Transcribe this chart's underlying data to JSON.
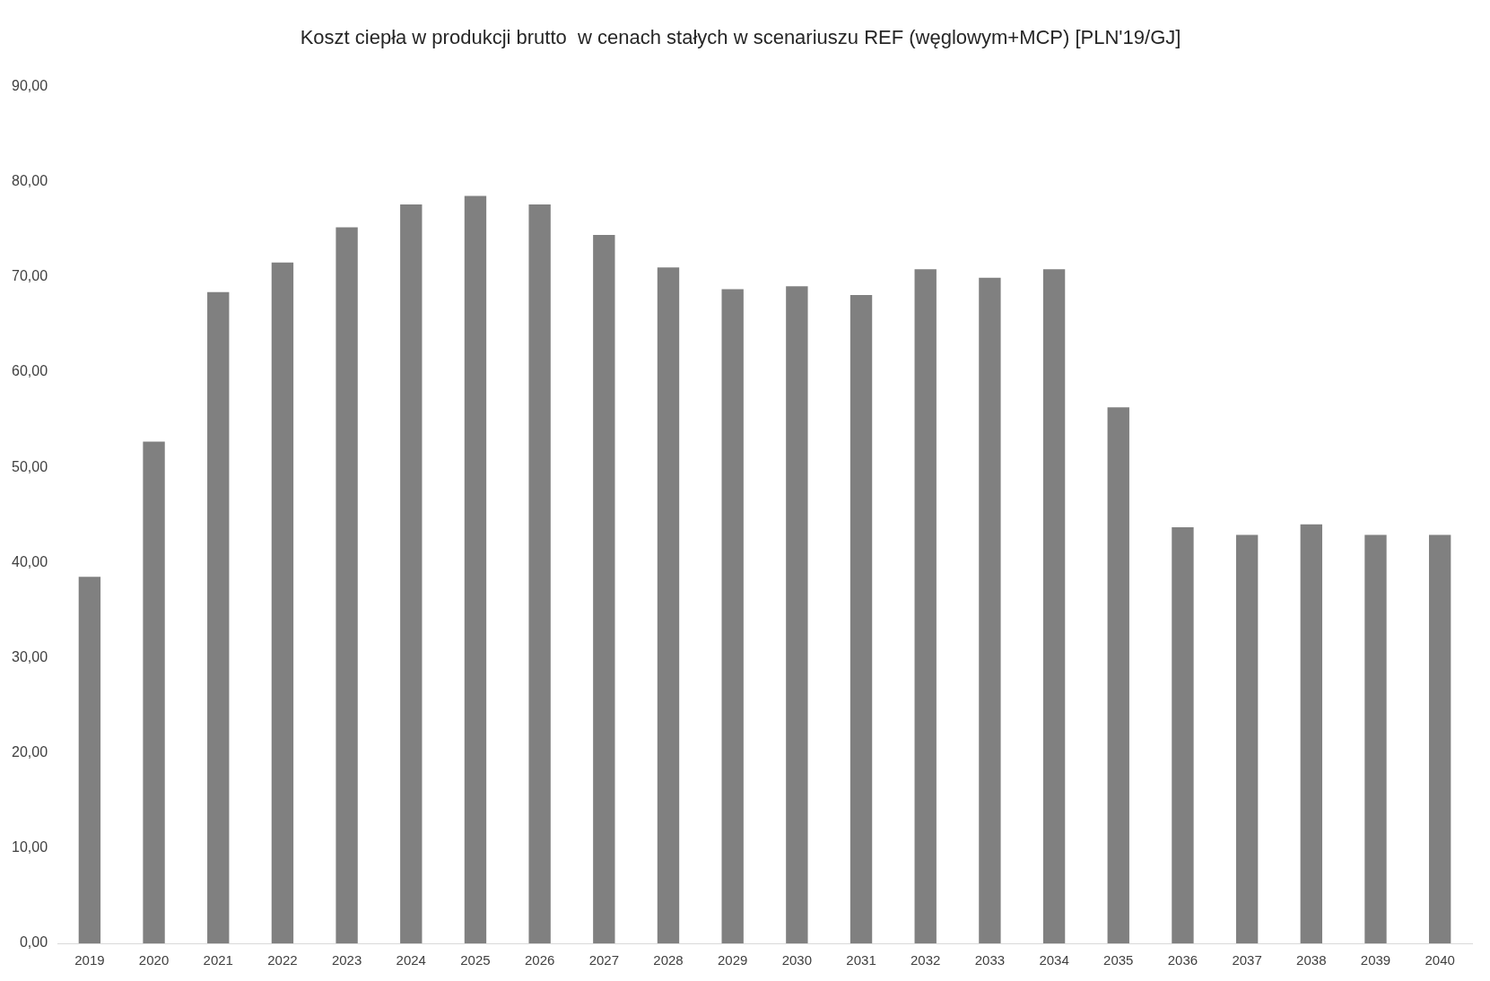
{
  "chart_data": {
    "type": "bar",
    "title": "Koszt ciepła w produkcji brutto  w cenach stałych w scenariuszu REF (węglowym+MCP) [PLN'19/GJ]",
    "categories": [
      "2019",
      "2020",
      "2021",
      "2022",
      "2023",
      "2024",
      "2025",
      "2026",
      "2027",
      "2028",
      "2029",
      "2030",
      "2031",
      "2032",
      "2033",
      "2034",
      "2035",
      "2036",
      "2037",
      "2038",
      "2039",
      "2040"
    ],
    "values": [
      38.5,
      52.7,
      68.4,
      71.5,
      75.2,
      77.6,
      78.5,
      77.6,
      74.4,
      71.0,
      68.7,
      69.0,
      68.1,
      70.8,
      69.9,
      70.8,
      56.3,
      43.7,
      42.9,
      44.0,
      42.9,
      42.9
    ],
    "color": "#808080",
    "ylim": [
      0,
      90
    ],
    "yticks": [
      {
        "value": 0,
        "label": "0,00"
      },
      {
        "value": 10,
        "label": "10,00"
      },
      {
        "value": 20,
        "label": "20,00"
      },
      {
        "value": 30,
        "label": "30,00"
      },
      {
        "value": 40,
        "label": "40,00"
      },
      {
        "value": 50,
        "label": "50,00"
      },
      {
        "value": 60,
        "label": "60,00"
      },
      {
        "value": 70,
        "label": "70,00"
      },
      {
        "value": 80,
        "label": "80,00"
      },
      {
        "value": 90,
        "label": "90,00"
      }
    ],
    "grid": false,
    "legend": false
  }
}
